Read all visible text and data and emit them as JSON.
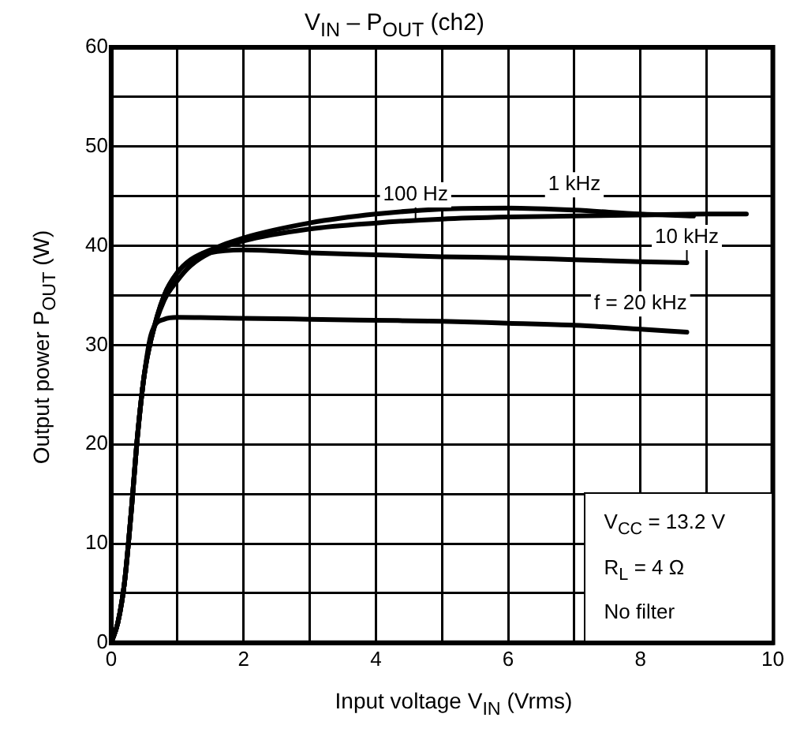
{
  "chart_data": {
    "type": "line",
    "title": "V$_{IN}$ – P$_{OUT}$ (ch2)",
    "xlabel": "Input voltage   V$_{IN}$   (Vrms)",
    "ylabel": "Output power    P$_{OUT}$    (W)",
    "xlim": [
      0,
      10
    ],
    "ylim": [
      0,
      60
    ],
    "xticks": [
      0,
      {
        "value": 1,
        "label": null
      },
      2,
      {
        "value": 3,
        "label": null
      },
      4,
      {
        "value": 5,
        "label": null
      },
      6,
      {
        "value": 7,
        "label": null
      },
      8,
      {
        "value": 9,
        "label": null
      },
      10
    ],
    "yticks": [
      0,
      {
        "value": 5,
        "label": null
      },
      10,
      {
        "value": 15,
        "label": null
      },
      20,
      {
        "value": 25,
        "label": null
      },
      30,
      {
        "value": 35,
        "label": null
      },
      40,
      {
        "value": 45,
        "label": null
      },
      50,
      {
        "value": 55,
        "label": null
      },
      60
    ],
    "grid": true,
    "legend": false,
    "marker": "none",
    "line_style": "solid",
    "series": [
      {
        "color": "#000000",
        "x": [
          0,
          0.1,
          0.2,
          0.3,
          0.4,
          0.5,
          0.6,
          0.8,
          1,
          1.2,
          1.5,
          2,
          3,
          4,
          5,
          6,
          7,
          8,
          9,
          9.6
        ],
        "values": [
          0,
          2,
          6,
          13,
          21,
          27,
          30.5,
          34.5,
          36.5,
          38,
          39.3,
          40.5,
          41.7,
          42.3,
          42.7,
          42.9,
          43,
          43.1,
          43.2,
          43.2
        ]
      },
      {
        "color": "#000000",
        "x": [
          0,
          0.1,
          0.2,
          0.3,
          0.4,
          0.5,
          0.6,
          0.8,
          1,
          1.2,
          1.5,
          2,
          3,
          4,
          5,
          6,
          7,
          8,
          8.8
        ],
        "values": [
          0,
          2,
          6,
          13,
          21,
          27,
          30.5,
          35,
          37.3,
          38.6,
          39.6,
          40.8,
          42.3,
          43.2,
          43.7,
          43.8,
          43.6,
          43.2,
          43
        ]
      },
      {
        "color": "#000000",
        "x": [
          0,
          0.1,
          0.2,
          0.3,
          0.4,
          0.5,
          0.6,
          0.8,
          1,
          1.2,
          1.5,
          2,
          3,
          4,
          5,
          6,
          7,
          8,
          8.7
        ],
        "values": [
          0,
          2,
          6,
          13,
          21,
          27,
          30.5,
          35,
          37.3,
          38.5,
          39.3,
          39.6,
          39.3,
          39.1,
          38.9,
          38.8,
          38.6,
          38.4,
          38.3
        ]
      },
      {
        "color": "#000000",
        "x": [
          0,
          0.1,
          0.2,
          0.3,
          0.4,
          0.5,
          0.6,
          0.8,
          1,
          2,
          3,
          4,
          5,
          6,
          7,
          8,
          8.7
        ],
        "values": [
          0,
          2,
          6,
          13,
          21,
          27,
          31,
          32.6,
          32.8,
          32.7,
          32.6,
          32.5,
          32.4,
          32.2,
          32,
          31.6,
          31.3
        ]
      }
    ],
    "annotations": [
      {
        "text": "100 Hz",
        "x": 4.6,
        "y": 42.6
      },
      {
        "text": "1 kHz",
        "x": 7,
        "y": 43.6
      },
      {
        "text": "10 kHz",
        "x": 8.7,
        "y": 38.3
      },
      {
        "text": "f = 20 kHz",
        "x": 8,
        "y": 31.6
      },
      "V$_{CC}$ = 13.2 V",
      "R$_{L}$ = 4 Ω",
      "No filter"
    ]
  }
}
